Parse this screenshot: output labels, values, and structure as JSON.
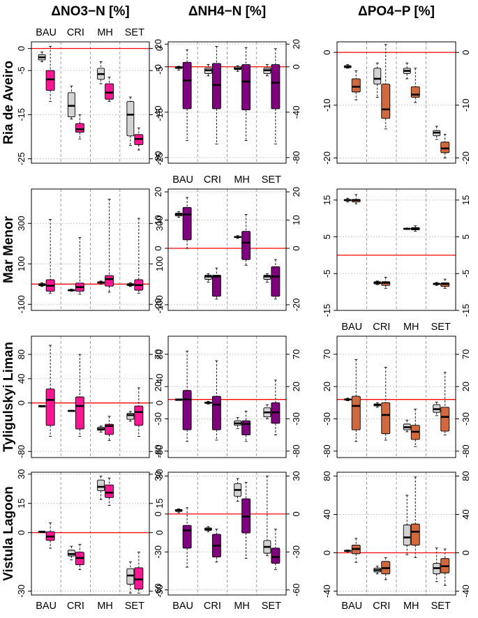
{
  "colors": {
    "nitrate": "#ff1493",
    "ammonium": "#800080",
    "phosphate": "#d2693c",
    "reference": "#d3d3d3",
    "zero_line": "#ff0000"
  },
  "columns": [
    {
      "key": "no3",
      "title": "ΔNO3−N  [%]"
    },
    {
      "key": "nh4",
      "title": "ΔNH4−N  [%]"
    },
    {
      "key": "po4",
      "title": "ΔPO4−P  [%]"
    }
  ],
  "categories": [
    "BAU",
    "CRI",
    "MH",
    "SET"
  ],
  "rows": [
    {
      "key": "ria",
      "title": "Ria de Aveiro"
    },
    {
      "key": "mar",
      "title": "Mar Menor"
    },
    {
      "key": "tyl",
      "title": "Tyligulskyi Liman"
    },
    {
      "key": "vis",
      "title": "Vistula Lagoon"
    }
  ],
  "chart_data": [
    {
      "type": "box",
      "row": 0,
      "col": 0,
      "ylim": [
        -26,
        1.5
      ],
      "ticks": [
        0,
        -5,
        -15,
        -25
      ],
      "boxes": [
        [
          [
            -3,
            -2.6,
            -2,
            -1.4,
            -0.8
          ],
          [
            -12,
            -9.5,
            -7,
            -5,
            0.5
          ]
        ],
        [
          [
            -16,
            -15.5,
            -13,
            -10,
            -8.5
          ],
          [
            -20.5,
            -19,
            -18.3,
            -17,
            -15
          ]
        ],
        [
          [
            -8,
            -7,
            -5.8,
            -4.5,
            -3
          ],
          [
            -12,
            -11.5,
            -10,
            -8,
            -6.5
          ]
        ],
        [
          [
            -22,
            -19.8,
            -15,
            -12,
            -11
          ],
          [
            -23,
            -21.8,
            -20.5,
            -19.5,
            -18
          ]
        ]
      ]
    },
    {
      "type": "box",
      "row": 0,
      "col": 1,
      "ylim": [
        -85,
        22
      ],
      "ticks": [
        20,
        0,
        -40,
        -80
      ],
      "boxes": [
        [
          [
            -3,
            -1.5,
            -0.5,
            0,
            0.5
          ],
          [
            -65,
            -37,
            -12,
            4,
            15
          ]
        ],
        [
          [
            -8,
            -6,
            -3,
            -1,
            2
          ],
          [
            -68,
            -37,
            -16,
            3,
            18
          ]
        ],
        [
          [
            -4,
            -2.5,
            -1.5,
            0,
            1
          ],
          [
            -65,
            -38,
            -13,
            2,
            17
          ]
        ],
        [
          [
            -8,
            -6,
            -3,
            -1,
            2
          ],
          [
            -68,
            -37,
            -14,
            2,
            16
          ]
        ]
      ]
    },
    {
      "type": "box",
      "row": 0,
      "col": 2,
      "ylim": [
        -21,
        2
      ],
      "ticks": [
        0,
        -10,
        -20
      ],
      "boxes": [
        [
          [
            -3,
            -2.9,
            -2.7,
            -2.5,
            -2.3
          ],
          [
            -9,
            -7.5,
            -6.5,
            -5,
            -3.5
          ]
        ],
        [
          [
            -8.5,
            -6,
            -5,
            -3,
            -2
          ],
          [
            -14.5,
            -12.5,
            -10.8,
            -6,
            1.5
          ]
        ],
        [
          [
            -5,
            -4,
            -3.5,
            -3,
            -2
          ],
          [
            -9.5,
            -8.5,
            -8,
            -6.5,
            -3
          ]
        ],
        [
          [
            -16.5,
            -15.8,
            -15.2,
            -14.8,
            -14
          ],
          [
            -20,
            -19,
            -18.2,
            -17,
            -15.5
          ]
        ]
      ]
    },
    {
      "type": "box",
      "row": 1,
      "col": 0,
      "ylim": [
        -130,
        470
      ],
      "ticks": [
        300,
        100,
        -100
      ],
      "boxes": [
        [
          [
            -12,
            -8,
            -2,
            2,
            6
          ],
          [
            -45,
            -35,
            -8,
            22,
            320
          ]
        ],
        [
          [
            -35,
            -32,
            -30,
            -28,
            -25
          ],
          [
            -50,
            -35,
            -15,
            5,
            230
          ]
        ],
        [
          [
            0,
            5,
            8,
            11,
            15
          ],
          [
            -40,
            -10,
            25,
            42,
            420
          ]
        ],
        [
          [
            -12,
            -8,
            -2,
            2,
            6
          ],
          [
            -45,
            -30,
            -5,
            22,
            325
          ]
        ]
      ]
    },
    {
      "type": "box",
      "row": 1,
      "col": 1,
      "ylim": [
        -22,
        21
      ],
      "ticks": [
        20,
        10,
        0,
        -20
      ],
      "boxes": [
        [
          [
            11,
            11.5,
            12,
            12.5,
            13
          ],
          [
            0,
            3,
            12,
            14.5,
            18
          ]
        ],
        [
          [
            -12,
            -11,
            -10,
            -9.5,
            -9
          ],
          [
            -18,
            -17,
            -10,
            -9.5,
            -7
          ]
        ],
        [
          [
            3.5,
            3.8,
            4,
            4.2,
            4.5
          ],
          [
            -6,
            -4,
            2,
            6,
            12
          ]
        ],
        [
          [
            -12,
            -11,
            -10,
            -9.5,
            -9
          ],
          [
            -18,
            -17,
            -10,
            -6.5,
            -4
          ]
        ]
      ]
    },
    {
      "type": "box",
      "row": 1,
      "col": 2,
      "ylim": [
        -15,
        18
      ],
      "ticks": [
        15,
        5,
        -5,
        -15
      ],
      "boxes": [
        [
          [
            14.5,
            14.8,
            15,
            15.2,
            15.5
          ],
          [
            14,
            14.5,
            15,
            15.2,
            16.5
          ]
        ],
        [
          [
            -8,
            -7.8,
            -7.5,
            -7.2,
            -7
          ],
          [
            -9,
            -8.2,
            -7.5,
            -7.2,
            -6
          ]
        ],
        [
          [
            7,
            7.1,
            7.2,
            7.3,
            7.4
          ],
          [
            6.5,
            6.9,
            7.2,
            7.5,
            8
          ]
        ],
        [
          [
            -8.2,
            -8,
            -7.8,
            -7.6,
            -7.4
          ],
          [
            -9,
            -8.5,
            -7.8,
            -7.5,
            -6.5
          ]
        ]
      ]
    },
    {
      "type": "box",
      "row": 2,
      "col": 0,
      "ylim": [
        -90,
        110
      ],
      "ticks": [
        80,
        40,
        0,
        -80
      ],
      "boxes": [
        [
          [
            -5,
            -5,
            -5,
            -5,
            -5
          ],
          [
            -55,
            -37,
            5,
            23,
            95
          ]
        ],
        [
          [
            -14,
            -13.5,
            -13,
            -12.5,
            -12
          ],
          [
            -55,
            -43,
            -5,
            10,
            80
          ]
        ],
        [
          [
            -48,
            -45,
            -43,
            -40,
            -38
          ],
          [
            -62,
            -52,
            -38,
            -35,
            -22
          ]
        ],
        [
          [
            -30,
            -27,
            -20,
            -17,
            -14
          ],
          [
            -55,
            -37,
            -15,
            -5,
            25
          ]
        ]
      ]
    },
    {
      "type": "box",
      "row": 2,
      "col": 1,
      "ylim": [
        -90,
        98
      ],
      "ticks": [
        70,
        20,
        -30,
        -80
      ],
      "boxes": [
        [
          [
            0,
            0,
            0,
            0,
            0
          ],
          [
            -65,
            -47,
            0,
            14,
            75
          ]
        ],
        [
          [
            -7,
            -6,
            -5,
            -4,
            -3
          ],
          [
            -63,
            -47,
            -8,
            5,
            60
          ]
        ],
        [
          [
            -45,
            -40,
            -37,
            -33,
            -28
          ],
          [
            -65,
            -55,
            -38,
            -33,
            -18
          ]
        ],
        [
          [
            -30,
            -27,
            -20,
            -13,
            -8
          ],
          [
            -55,
            -37,
            -20,
            -5,
            30
          ]
        ]
      ]
    },
    {
      "type": "box",
      "row": 2,
      "col": 2,
      "ylim": [
        -90,
        98
      ],
      "ticks": [
        70,
        20,
        -30,
        -80
      ],
      "boxes": [
        [
          [
            -2,
            -1,
            0,
            1,
            2
          ],
          [
            -65,
            -47,
            -10,
            5,
            62
          ]
        ],
        [
          [
            -12,
            -10,
            -8,
            -7,
            -5
          ],
          [
            -63,
            -53,
            -24,
            -5,
            50
          ]
        ],
        [
          [
            -50,
            -47,
            -43,
            -38,
            -32
          ],
          [
            -73,
            -62,
            -50,
            -40,
            -15
          ]
        ],
        [
          [
            -25,
            -20,
            -15,
            -8,
            -4
          ],
          [
            -55,
            -49,
            -27,
            -12,
            42
          ]
        ]
      ]
    },
    {
      "type": "box",
      "row": 3,
      "col": 0,
      "ylim": [
        -32,
        31
      ],
      "ticks": [
        30,
        15,
        0,
        -30
      ],
      "boxes": [
        [
          [
            0.5,
            0.5,
            0.5,
            0.5,
            0.5
          ],
          [
            -8,
            -4,
            -2,
            0.5,
            5
          ]
        ],
        [
          [
            -14,
            -12,
            -11,
            -9,
            -7
          ],
          [
            -19,
            -16.5,
            -13,
            -10,
            -6
          ]
        ],
        [
          [
            17,
            21.5,
            23.5,
            27,
            29
          ],
          [
            14,
            18,
            20.5,
            24.5,
            28
          ]
        ],
        [
          [
            -31,
            -26.5,
            -22,
            -18.5,
            -15
          ],
          [
            -31,
            -29,
            -24,
            -18,
            -10
          ]
        ]
      ]
    },
    {
      "type": "box",
      "row": 3,
      "col": 1,
      "ylim": [
        -64,
        33
      ],
      "ticks": [
        30,
        0,
        -30,
        -60
      ],
      "boxes": [
        [
          [
            1,
            2,
            3,
            3.5,
            4
          ],
          [
            -42,
            -27,
            -13,
            -9,
            5
          ]
        ],
        [
          [
            -14,
            -13,
            -12,
            -11,
            -10
          ],
          [
            -38,
            -34,
            -25,
            -16,
            -12
          ]
        ],
        [
          [
            10,
            14,
            19,
            24,
            28
          ],
          [
            -35,
            -15,
            -2,
            12,
            25
          ]
        ],
        [
          [
            -33,
            -31,
            -26,
            -21,
            30
          ],
          [
            -44,
            -39,
            -34,
            -27,
            -12
          ]
        ]
      ]
    },
    {
      "type": "box",
      "row": 3,
      "col": 2,
      "ylim": [
        -44,
        84
      ],
      "ticks": [
        80,
        40,
        0,
        -40
      ],
      "boxes": [
        [
          [
            1,
            1.5,
            2,
            2.5,
            3
          ],
          [
            -10,
            -1,
            4,
            8,
            15
          ]
        ],
        [
          [
            -22,
            -20,
            -18,
            -16,
            -14
          ],
          [
            -28,
            -22,
            -16,
            -9,
            -5
          ]
        ],
        [
          [
            -2,
            8,
            16,
            29,
            60
          ],
          [
            -5,
            8,
            22,
            30,
            79
          ]
        ],
        [
          [
            -30,
            -22,
            -16,
            -11,
            5
          ],
          [
            -34,
            -21,
            -14,
            -6,
            4
          ]
        ]
      ]
    }
  ]
}
